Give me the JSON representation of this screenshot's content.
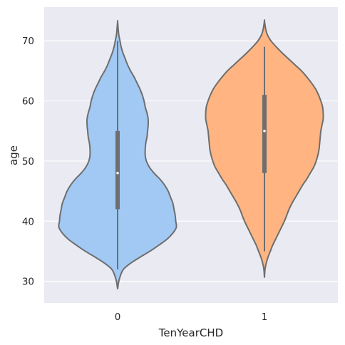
{
  "chart_data": {
    "type": "violin",
    "title": "",
    "xlabel": "TenYearCHD",
    "ylabel": "age",
    "categories": [
      "0",
      "1"
    ],
    "ylim": [
      26.4,
      75.6
    ],
    "yticks": [
      30,
      40,
      50,
      60,
      70
    ],
    "grid": true,
    "legend": "none",
    "colors": {
      "background": "#EAEAF2",
      "grid": "#FFFFFF",
      "outline": "#6E6E6E",
      "series": [
        "#A1C9F4",
        "#FFB482"
      ]
    },
    "violins": [
      {
        "category": "0",
        "profile": [
          [
            28.7,
            0.0
          ],
          [
            30.0,
            0.02
          ],
          [
            31.0,
            0.05
          ],
          [
            32.0,
            0.1
          ],
          [
            33.0,
            0.22
          ],
          [
            34.0,
            0.38
          ],
          [
            35.0,
            0.55
          ],
          [
            36.0,
            0.7
          ],
          [
            37.0,
            0.84
          ],
          [
            38.0,
            0.94
          ],
          [
            39.0,
            1.0
          ],
          [
            40.0,
            0.99
          ],
          [
            41.0,
            0.98
          ],
          [
            42.0,
            0.96
          ],
          [
            43.0,
            0.94
          ],
          [
            44.0,
            0.9
          ],
          [
            45.0,
            0.86
          ],
          [
            46.0,
            0.8
          ],
          [
            47.0,
            0.72
          ],
          [
            48.0,
            0.62
          ],
          [
            49.0,
            0.54
          ],
          [
            50.0,
            0.49
          ],
          [
            51.0,
            0.47
          ],
          [
            52.0,
            0.47
          ],
          [
            53.0,
            0.48
          ],
          [
            54.0,
            0.5
          ],
          [
            55.0,
            0.51
          ],
          [
            56.0,
            0.52
          ],
          [
            57.0,
            0.52
          ],
          [
            58.0,
            0.5
          ],
          [
            59.0,
            0.47
          ],
          [
            60.0,
            0.45
          ],
          [
            61.0,
            0.42
          ],
          [
            62.0,
            0.38
          ],
          [
            63.0,
            0.33
          ],
          [
            64.0,
            0.28
          ],
          [
            65.0,
            0.22
          ],
          [
            66.0,
            0.17
          ],
          [
            67.0,
            0.13
          ],
          [
            68.0,
            0.09
          ],
          [
            69.0,
            0.06
          ],
          [
            70.0,
            0.04
          ],
          [
            71.0,
            0.02
          ],
          [
            72.0,
            0.01
          ],
          [
            73.2,
            0.0
          ]
        ],
        "whisker": [
          32,
          70
        ],
        "quartiles": [
          42,
          55
        ],
        "median": 48
      },
      {
        "category": "1",
        "profile": [
          [
            30.6,
            0.0
          ],
          [
            32.0,
            0.01
          ],
          [
            33.0,
            0.03
          ],
          [
            34.0,
            0.06
          ],
          [
            35.0,
            0.1
          ],
          [
            36.0,
            0.14
          ],
          [
            37.0,
            0.19
          ],
          [
            38.0,
            0.24
          ],
          [
            39.0,
            0.29
          ],
          [
            40.0,
            0.34
          ],
          [
            41.0,
            0.38
          ],
          [
            42.0,
            0.42
          ],
          [
            43.0,
            0.47
          ],
          [
            44.0,
            0.53
          ],
          [
            45.0,
            0.59
          ],
          [
            46.0,
            0.65
          ],
          [
            47.0,
            0.72
          ],
          [
            48.0,
            0.78
          ],
          [
            49.0,
            0.84
          ],
          [
            50.0,
            0.88
          ],
          [
            51.0,
            0.91
          ],
          [
            52.0,
            0.93
          ],
          [
            53.0,
            0.94
          ],
          [
            54.0,
            0.95
          ],
          [
            55.0,
            0.96
          ],
          [
            56.0,
            0.98
          ],
          [
            57.0,
            1.0
          ],
          [
            58.0,
            1.0
          ],
          [
            59.0,
            0.99
          ],
          [
            60.0,
            0.96
          ],
          [
            61.0,
            0.92
          ],
          [
            62.0,
            0.87
          ],
          [
            63.0,
            0.8
          ],
          [
            64.0,
            0.72
          ],
          [
            65.0,
            0.63
          ],
          [
            66.0,
            0.52
          ],
          [
            67.0,
            0.41
          ],
          [
            68.0,
            0.3
          ],
          [
            69.0,
            0.2
          ],
          [
            70.0,
            0.11
          ],
          [
            71.0,
            0.05
          ],
          [
            72.0,
            0.02
          ],
          [
            73.3,
            0.0
          ]
        ],
        "whisker": [
          35,
          69
        ],
        "quartiles": [
          48,
          61
        ],
        "median": 55
      }
    ]
  }
}
